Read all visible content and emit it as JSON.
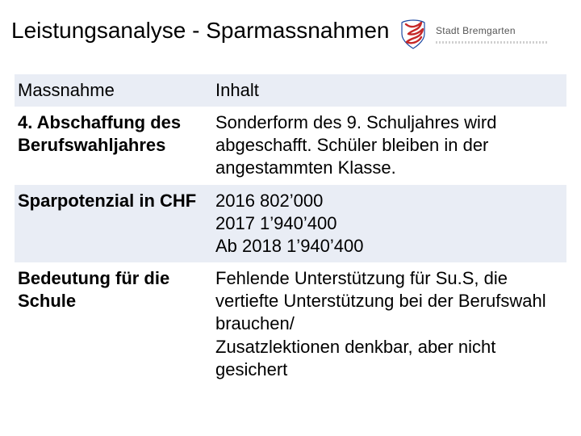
{
  "title": "Leistungsanalyse - Sparmassnahmen",
  "logo": {
    "text": "Stadt Bremgarten",
    "crest_fill": "#c62828",
    "crest_stroke": "#1f4aa3"
  },
  "table": {
    "header_bg": "#e9edf5",
    "band_bg": "#e9edf5",
    "font_size": 22,
    "columns": [
      "c1",
      "c2"
    ],
    "rows": [
      {
        "band": "header",
        "left": "Massnahme",
        "right": "Inhalt",
        "left_bold": false,
        "right_bold": false
      },
      {
        "band": "light",
        "left": "4. Abschaffung des Berufswahljahres",
        "right": "Sonderform des 9. Schuljahres wird abgeschafft. Schüler bleiben in der angestammten Klasse.",
        "left_bold": true,
        "right_bold": false
      },
      {
        "band": "band",
        "left": "Sparpotenzial in CHF",
        "right": "2016 802’000\n2017 1’940’400\nAb 2018 1’940’400",
        "left_bold": true,
        "right_bold": false
      },
      {
        "band": "light",
        "left": "Bedeutung für die Schule",
        "right": "Fehlende Unterstützung für Su.S, die vertiefte Unterstützung bei der Berufswahl brauchen/\nZusatzlektionen denkbar, aber nicht gesichert",
        "left_bold": true,
        "right_bold": false
      }
    ]
  }
}
